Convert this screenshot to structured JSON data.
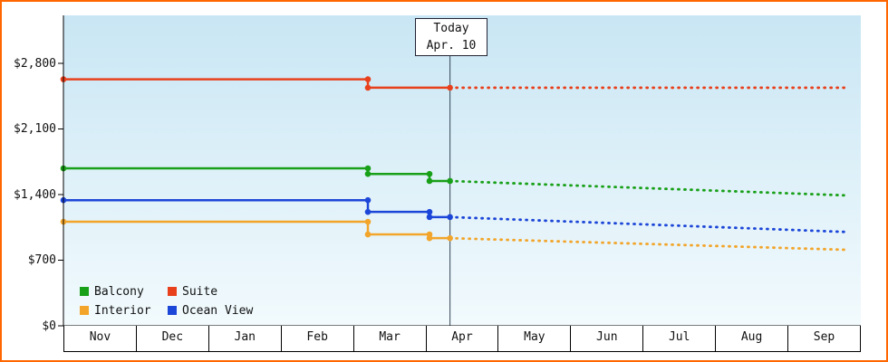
{
  "chart_data": {
    "type": "line",
    "title": "",
    "y_axis": {
      "tick_labels": [
        "$0",
        "$700",
        "$1,400",
        "$2,100",
        "$2,800"
      ],
      "tick_values": [
        0,
        700,
        1400,
        2100,
        2800
      ],
      "max": 2800
    },
    "x_axis": {
      "categories": [
        "Nov",
        "Dec",
        "Jan",
        "Feb",
        "Mar",
        "Apr",
        "May",
        "Jun",
        "Jul",
        "Aug",
        "Sep"
      ]
    },
    "today_marker": {
      "label_line1": "Today",
      "label_line2": "Apr. 10",
      "x": 5.333
    },
    "x_end": 10.84,
    "series": [
      {
        "name": "Suite",
        "color": "#e8401c",
        "solid": [
          [
            0,
            2630
          ],
          [
            4.2,
            2630
          ],
          [
            4.2,
            2540
          ],
          [
            5.333,
            2540
          ]
        ],
        "dotted": [
          [
            5.333,
            2540
          ],
          [
            10.84,
            2540
          ]
        ],
        "markers": [
          [
            0,
            2630
          ],
          [
            4.2,
            2630
          ],
          [
            4.2,
            2540
          ],
          [
            5.333,
            2540
          ]
        ]
      },
      {
        "name": "Balcony",
        "color": "#18a018",
        "solid": [
          [
            0,
            1680
          ],
          [
            4.2,
            1680
          ],
          [
            4.2,
            1620
          ],
          [
            5.05,
            1620
          ],
          [
            5.05,
            1545
          ],
          [
            5.333,
            1545
          ]
        ],
        "dotted": [
          [
            5.333,
            1545
          ],
          [
            10.84,
            1390
          ]
        ],
        "markers": [
          [
            0,
            1680
          ],
          [
            4.2,
            1680
          ],
          [
            4.2,
            1620
          ],
          [
            5.05,
            1620
          ],
          [
            5.05,
            1545
          ],
          [
            5.333,
            1545
          ]
        ]
      },
      {
        "name": "Ocean View",
        "color": "#1c46d8",
        "solid": [
          [
            0,
            1340
          ],
          [
            4.2,
            1340
          ],
          [
            4.2,
            1215
          ],
          [
            5.05,
            1215
          ],
          [
            5.05,
            1160
          ],
          [
            5.333,
            1160
          ]
        ],
        "dotted": [
          [
            5.333,
            1160
          ],
          [
            10.84,
            1000
          ]
        ],
        "markers": [
          [
            0,
            1340
          ],
          [
            4.2,
            1340
          ],
          [
            4.2,
            1215
          ],
          [
            5.05,
            1215
          ],
          [
            5.05,
            1160
          ],
          [
            5.333,
            1160
          ]
        ]
      },
      {
        "name": "Interior",
        "color": "#f2a52a",
        "solid": [
          [
            0,
            1110
          ],
          [
            4.2,
            1110
          ],
          [
            4.2,
            975
          ],
          [
            5.05,
            975
          ],
          [
            5.05,
            935
          ],
          [
            5.333,
            935
          ]
        ],
        "dotted": [
          [
            5.333,
            935
          ],
          [
            10.84,
            810
          ]
        ],
        "markers": [
          [
            0,
            1110
          ],
          [
            4.2,
            1110
          ],
          [
            4.2,
            975
          ],
          [
            5.05,
            975
          ],
          [
            5.05,
            935
          ],
          [
            5.333,
            935
          ]
        ]
      }
    ],
    "legend": [
      {
        "label": "Balcony",
        "color": "#18a018"
      },
      {
        "label": "Suite",
        "color": "#e8401c"
      },
      {
        "label": "Interior",
        "color": "#f2a52a"
      },
      {
        "label": "Ocean View",
        "color": "#1c46d8"
      }
    ],
    "colors": {
      "background_top": "#c9e6f4",
      "background_bottom": "#f2fafd",
      "frame_border": "#ff6600",
      "axis": "#000000",
      "today_line": "#334455"
    }
  }
}
